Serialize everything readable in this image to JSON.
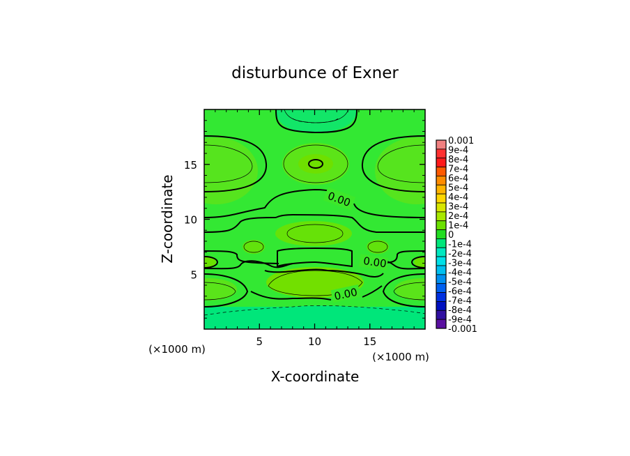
{
  "chart_data": {
    "type": "heatmap",
    "title": "disturbunce of Exner",
    "xlabel": "X-coordinate",
    "ylabel": "Z-coordinate",
    "x_unit_label": "(×1000 m)",
    "z_unit_label": "(×1000 m)",
    "xlim": [
      0,
      20
    ],
    "ylim": [
      0,
      20
    ],
    "xticks": [
      "5",
      "10",
      "15"
    ],
    "yticks": [
      "5",
      "10",
      "15"
    ],
    "grid": false,
    "colorbar": {
      "levels": [
        "0.001",
        "9e-4",
        "8e-4",
        "7e-4",
        "6e-4",
        "5e-4",
        "4e-4",
        "3e-4",
        "2e-4",
        "1e-4",
        "0",
        "-1e-4",
        "-2e-4",
        "-3e-4",
        "-4e-4",
        "-5e-4",
        "-6e-4",
        "-7e-4",
        "-8e-4",
        "-9e-4",
        "-0.001"
      ],
      "colors": [
        "#f08080",
        "#ff3030",
        "#ff1a1a",
        "#ff5a00",
        "#ff8c00",
        "#ffb400",
        "#ffd700",
        "#d8e600",
        "#a8e800",
        "#6be000",
        "#22dd22",
        "#00e67a",
        "#00e8c0",
        "#00e0e8",
        "#00c0f0",
        "#0090f0",
        "#0060f0",
        "#0030e0",
        "#0010c0",
        "#3010a0",
        "#5a10a0"
      ]
    },
    "contour_labels": [
      "0.00",
      "0.00",
      "0.00"
    ],
    "colors": {
      "field_base": "#33e833",
      "field_light": "#6ae200",
      "field_pale": "#52e61c",
      "field_negative": "#00e67a"
    }
  }
}
